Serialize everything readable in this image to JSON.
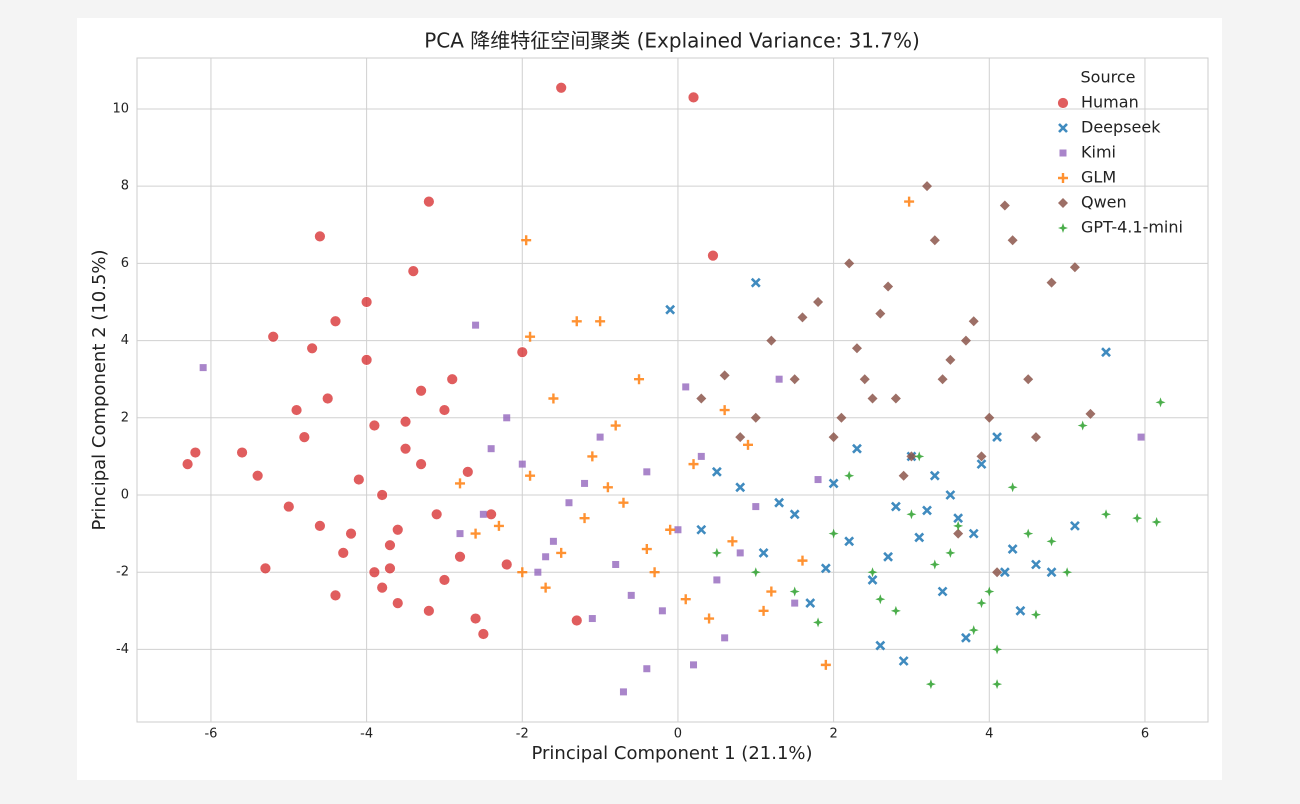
{
  "chart_data": {
    "type": "scatter",
    "title": "PCA 降维特征空间聚类 (Explained Variance: 31.7%)",
    "x_label": "Principal Component 1 (21.1%)",
    "y_label": "Principal Component 2 (10.5%)",
    "legend_title": "Source",
    "legend_position": "upper right",
    "grid": true,
    "xlim": [
      -6.95,
      6.81
    ],
    "ylim": [
      -5.88,
      11.32
    ],
    "xticks": [
      -6,
      -4,
      -2,
      0,
      2,
      4,
      6
    ],
    "yticks": [
      -4,
      -2,
      0,
      2,
      4,
      6,
      8,
      10
    ],
    "series": [
      {
        "name": "Human",
        "color": "#d62728",
        "marker": "circle",
        "x": [
          -3.8,
          -4.2,
          -3.5,
          -3.1,
          -4.5,
          -3.9,
          -3.3,
          -2.8,
          -4.0,
          -3.6,
          -4.8,
          -5.0,
          -4.4,
          -3.0,
          -2.6,
          -3.7,
          -4.1,
          -3.4,
          -2.9,
          -5.4,
          -5.6,
          -4.6,
          -3.2,
          -4.7,
          -3.8,
          -2.4,
          -2.2,
          -3.5,
          -4.3,
          -5.2,
          -6.3,
          -6.2,
          -1.5,
          0.2,
          0.45,
          -3.2,
          -4.6,
          -5.3,
          -3.3,
          -3.9,
          -2.5,
          -1.3,
          -4.0,
          -3.6,
          -2.0,
          -3.0,
          -4.9,
          -3.7,
          -2.7,
          -4.4
        ],
        "values": [
          0,
          -1,
          1.2,
          -0.5,
          2.5,
          -2,
          0.8,
          -1.6,
          3.5,
          -2.8,
          1.5,
          -0.3,
          4.5,
          2.2,
          -3.2,
          -1.3,
          0.4,
          5.8,
          3.0,
          0.5,
          1.1,
          -0.8,
          -3.0,
          3.8,
          -2.4,
          -0.5,
          -1.8,
          1.9,
          -1.5,
          4.1,
          0.8,
          1.1,
          10.55,
          10.3,
          6.2,
          7.6,
          6.7,
          -1.9,
          2.7,
          1.8,
          -3.6,
          -3.25,
          5.0,
          -0.9,
          3.7,
          -2.2,
          2.2,
          -1.9,
          0.6,
          -2.6
        ]
      },
      {
        "name": "Deepseek",
        "color": "#1f77b4",
        "marker": "x",
        "x": [
          1.5,
          2.2,
          2.8,
          3.3,
          3.8,
          4.2,
          0.8,
          1.1,
          2.5,
          3.0,
          3.6,
          4.6,
          5.1,
          5.5,
          1.0,
          -0.1,
          0.3,
          2.0,
          2.7,
          3.4,
          3.9,
          4.4,
          1.7,
          2.3,
          3.1,
          3.7,
          4.8,
          0.5,
          1.3,
          2.9,
          3.2,
          4.1,
          2.6,
          1.9,
          3.5,
          4.3
        ],
        "values": [
          -0.5,
          -1.2,
          -0.3,
          0.5,
          -1.0,
          -2.0,
          0.2,
          -1.5,
          -2.2,
          1.0,
          -0.6,
          -1.8,
          -0.8,
          3.7,
          5.5,
          4.8,
          -0.9,
          0.3,
          -1.6,
          -2.5,
          0.8,
          -3.0,
          -2.8,
          1.2,
          -1.1,
          -3.7,
          -2.0,
          0.6,
          -0.2,
          -4.3,
          -0.4,
          1.5,
          -3.9,
          -1.9,
          0.0,
          -1.4
        ]
      },
      {
        "name": "Kimi",
        "color": "#9467bd",
        "marker": "square",
        "x": [
          -2.5,
          -2.0,
          -1.6,
          -1.2,
          -0.8,
          -0.4,
          0.0,
          0.5,
          1.0,
          1.5,
          -2.2,
          -1.8,
          -1.0,
          -0.6,
          0.3,
          0.8,
          1.3,
          -2.8,
          -2.4,
          -1.4,
          -0.2,
          0.6,
          -6.1,
          5.95,
          -0.4,
          0.2,
          -0.7,
          1.8,
          -1.1,
          -2.6,
          0.1,
          -1.7
        ],
        "values": [
          -0.5,
          0.8,
          -1.2,
          0.3,
          -1.8,
          0.6,
          -0.9,
          -2.2,
          -0.3,
          -2.8,
          2.0,
          -2.0,
          1.5,
          -2.6,
          1.0,
          -1.5,
          3.0,
          -1.0,
          1.2,
          -0.2,
          -3.0,
          -3.7,
          3.3,
          1.5,
          -4.5,
          -4.4,
          -5.1,
          0.4,
          -3.2,
          4.4,
          2.8,
          -1.6
        ]
      },
      {
        "name": "GLM",
        "color": "#ff7f0e",
        "marker": "plus",
        "x": [
          -2.3,
          -1.9,
          -1.5,
          -1.1,
          -0.7,
          -0.3,
          0.2,
          0.7,
          1.2,
          -2.0,
          -1.6,
          -1.2,
          -0.8,
          -0.4,
          0.1,
          0.6,
          -2.6,
          -1.3,
          -1.0,
          -1.9,
          -1.95,
          2.97,
          -0.9,
          0.4,
          1.1,
          1.9,
          -0.5,
          -1.7,
          -2.8,
          0.9,
          1.6,
          -0.1
        ],
        "values": [
          -0.8,
          0.5,
          -1.5,
          1.0,
          -0.2,
          -2.0,
          0.8,
          -1.2,
          -2.5,
          -2.0,
          2.5,
          -0.6,
          1.8,
          -1.4,
          -2.7,
          2.2,
          -1.0,
          4.5,
          4.5,
          4.1,
          6.6,
          7.6,
          0.2,
          -3.2,
          -3.0,
          -4.4,
          3.0,
          -2.4,
          0.3,
          1.3,
          -1.7,
          -0.9
        ]
      },
      {
        "name": "Qwen",
        "color": "#8c564b",
        "marker": "diamond",
        "x": [
          1.0,
          1.5,
          2.0,
          2.5,
          3.0,
          3.5,
          4.0,
          4.5,
          1.2,
          1.8,
          2.3,
          2.8,
          3.3,
          3.8,
          4.3,
          4.8,
          0.3,
          0.8,
          2.2,
          2.7,
          3.2,
          3.7,
          4.2,
          5.1,
          5.3,
          2.9,
          3.6,
          4.1,
          2.4,
          1.6,
          3.9,
          4.6,
          3.4,
          2.1,
          0.6,
          2.6
        ],
        "values": [
          2.0,
          3.0,
          1.5,
          2.5,
          1.0,
          3.5,
          2.0,
          3.0,
          4.0,
          5.0,
          3.8,
          2.5,
          6.6,
          4.5,
          6.6,
          5.5,
          2.5,
          1.5,
          6.0,
          5.4,
          8.0,
          4.0,
          7.5,
          5.9,
          2.1,
          0.5,
          -1.0,
          -2.0,
          3.0,
          4.6,
          1.0,
          1.5,
          3.0,
          2.0,
          3.1,
          4.7
        ]
      },
      {
        "name": "GPT-4.1-mini",
        "color": "#2ca02c",
        "marker": "star",
        "x": [
          2.0,
          2.5,
          3.0,
          3.5,
          4.0,
          4.5,
          5.0,
          5.5,
          1.5,
          2.2,
          2.8,
          3.3,
          3.8,
          4.3,
          4.8,
          1.0,
          1.8,
          3.1,
          3.6,
          4.1,
          5.2,
          5.9,
          6.2,
          6.15,
          3.25,
          4.1,
          3.9,
          0.5,
          2.6,
          4.6
        ],
        "values": [
          -1.0,
          -2.0,
          -0.5,
          -1.5,
          -2.5,
          -1.0,
          -2.0,
          -0.5,
          -2.5,
          0.5,
          -3.0,
          -1.8,
          -3.5,
          0.2,
          -1.2,
          -2.0,
          -3.3,
          1.0,
          -0.8,
          -4.0,
          1.8,
          -0.6,
          2.4,
          -0.7,
          -4.9,
          -4.9,
          -2.8,
          -1.5,
          -2.7,
          -3.1
        ]
      }
    ]
  }
}
